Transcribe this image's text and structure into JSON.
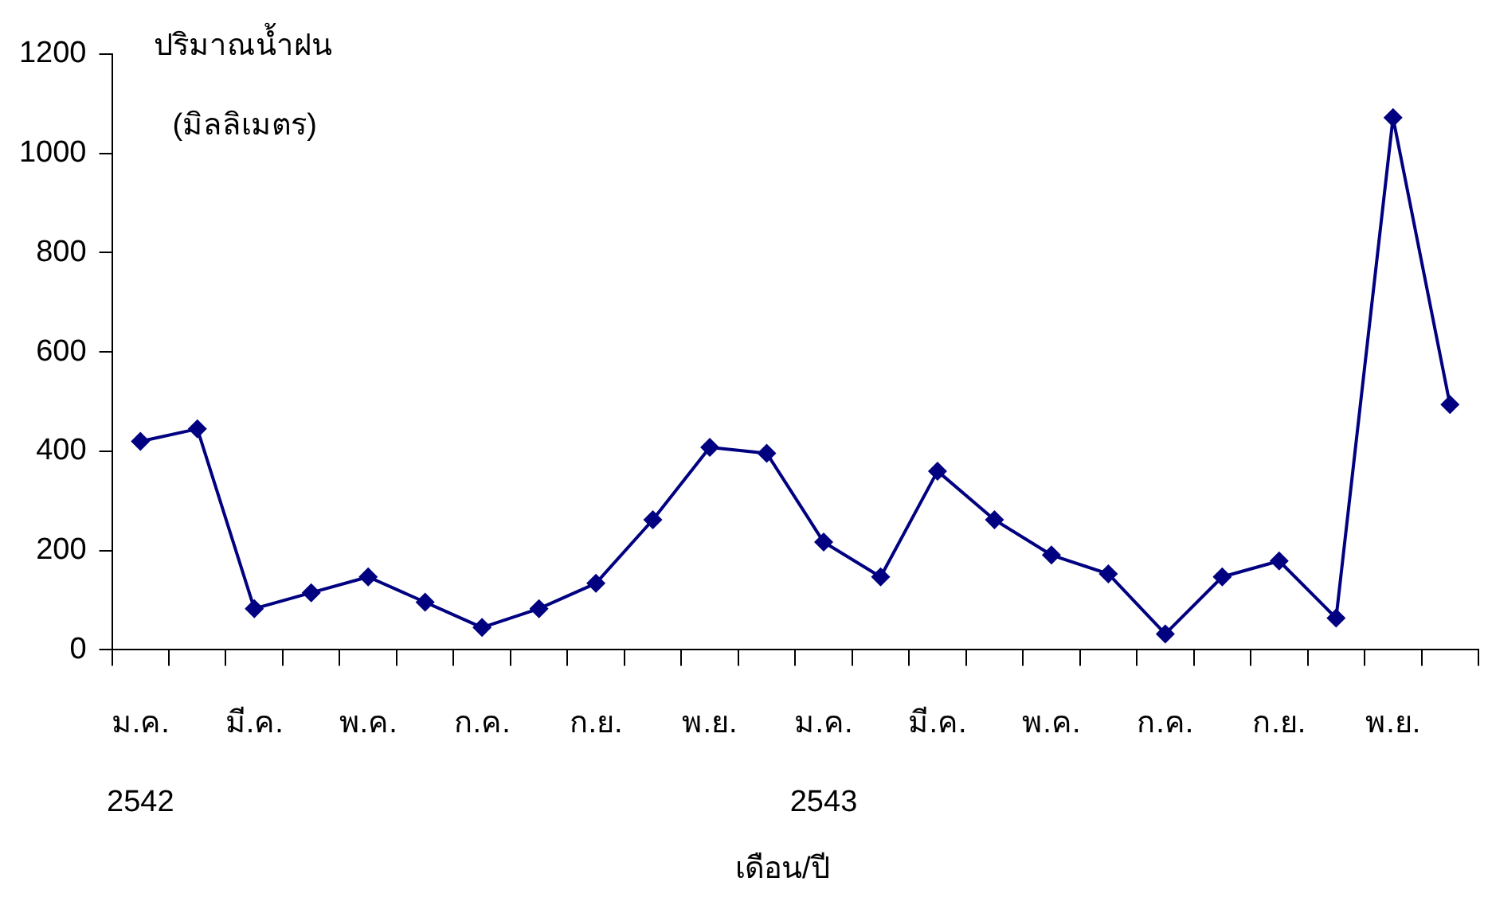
{
  "chart_data": {
    "type": "line",
    "ylabel": "ปริมาณน้ำฝน (มิลลิเมตร)",
    "xlabel": "เดือน/ปี",
    "categories": [
      "ม.ค.\n2542",
      null,
      "มี.ค.",
      null,
      "พ.ค.",
      null,
      "ก.ค.",
      null,
      "ก.ย.",
      null,
      "พ.ย.",
      null,
      "ม.ค.\n2543",
      null,
      "มี.ค.",
      null,
      "พ.ค.",
      null,
      "ก.ค.",
      null,
      "ก.ย.",
      null,
      "พ.ย.",
      null
    ],
    "series": [
      {
        "color": "#000080",
        "values": [
          420,
          445,
          83,
          115,
          147,
          96,
          45,
          83,
          134,
          262,
          408,
          396,
          217,
          147,
          360,
          262,
          191,
          153,
          32,
          147,
          179,
          64,
          1072,
          494
        ]
      }
    ],
    "ylim": [
      0,
      1200
    ],
    "yticks": [
      0,
      200,
      400,
      600,
      800,
      1000,
      1200
    ],
    "grid": false,
    "legend": false,
    "marker": "diamond",
    "line_style": "solid"
  }
}
